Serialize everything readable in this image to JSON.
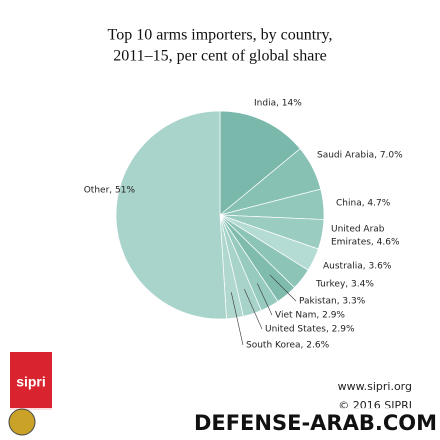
{
  "chart_data": {
    "type": "pie",
    "title": [
      "Top 10 arms importers, by country,",
      "2011–15, per cent of global share"
    ],
    "categories": [
      "India",
      "Saudi Arabia",
      "China",
      "United Arab Emirates",
      "Australia",
      "Turkey",
      "Pakistan",
      "Viet Nam",
      "United States",
      "South Korea",
      "Other"
    ],
    "values": [
      14,
      7.0,
      4.7,
      4.6,
      3.6,
      3.4,
      3.3,
      2.9,
      2.9,
      2.6,
      51
    ],
    "value_labels": [
      [
        "India, 14%"
      ],
      [
        "Saudi Arabia, 7.0%"
      ],
      [
        "China, 4.7%"
      ],
      [
        "United Arab",
        "Emirates, 4.6%"
      ],
      [
        "Australia, 3.6%"
      ],
      [
        "Turkey, 3.4%"
      ],
      [
        "Pakistan, 3.3%"
      ],
      [
        "Viet Nam, 2.9%"
      ],
      [
        "United States, 2.9%"
      ],
      [
        "South Korea, 2.6%"
      ],
      [
        "Other, 51%"
      ]
    ],
    "colors": [
      "#79b8aa",
      "#86c1b4",
      "#92c8bc",
      "#9bccc1",
      "#b5dcd4",
      "#8cc4b7",
      "#7fbcae",
      "#98cbc0",
      "#a7d3ca",
      "#b0d8cf",
      "#a9d4cb"
    ]
  },
  "footer": {
    "url": "www.sipri.org",
    "copyright": "© 2016 SIPRI",
    "logo": "sipri",
    "watermark": "DEFENSE-ARAB.COM"
  }
}
